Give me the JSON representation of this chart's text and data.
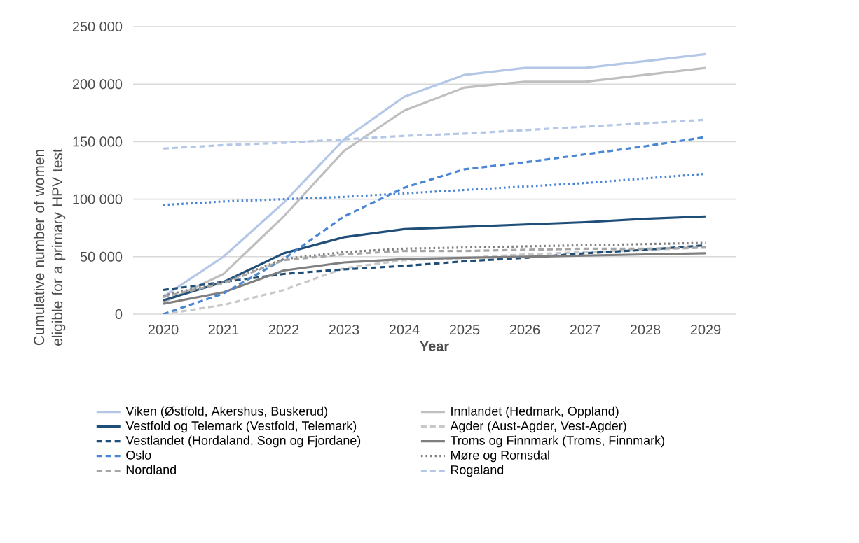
{
  "chart_data": {
    "type": "line",
    "xlabel": "Year",
    "ylabel": "Cumulative number of women eligible for a primary HPV test",
    "categories": [
      "2020",
      "2021",
      "2022",
      "2023",
      "2024",
      "2025",
      "2026",
      "2027",
      "2028",
      "2029"
    ],
    "ylim": [
      0,
      250000
    ],
    "yticks": [
      0,
      {
        "value": 50000,
        "label": "50 000"
      },
      {
        "value": 100000,
        "label": "100 000"
      },
      {
        "value": 150000,
        "label": "150 000"
      },
      {
        "value": 200000,
        "label": "200 000"
      },
      {
        "value": 250000,
        "label": "250 000"
      }
    ],
    "grid": "y",
    "legend": "bottom",
    "marker": "none",
    "series": [
      {
        "name": "Viken (Østfold, Akershus, Buskerud)",
        "color": "#b4c7e7",
        "line_style": "solid",
        "values": [
          15000,
          50000,
          97000,
          152000,
          189000,
          208000,
          214000,
          214000,
          220000,
          226000
        ]
      },
      {
        "name": "Innlandet (Hedmark, Oppland)",
        "color": "#bfbfbf",
        "line_style": "solid",
        "values": [
          10000,
          35000,
          85000,
          142000,
          177000,
          197000,
          202000,
          202000,
          208000,
          214000
        ]
      },
      {
        "name": "Vestfold og Telemark (Vestfold, Telemark)",
        "color": "#1f4e79",
        "line_style": "solid",
        "values": [
          12000,
          28000,
          53000,
          67000,
          74000,
          76000,
          78000,
          80000,
          83000,
          85000
        ]
      },
      {
        "name": "Agder (Aust-Agder, Vest-Agder)",
        "color": "#c8c8c8",
        "line_style": "dashed",
        "values": [
          0,
          8000,
          21000,
          40000,
          47000,
          49000,
          52000,
          54000,
          56000,
          58000
        ]
      },
      {
        "name": "Vestlandet (Hordaland, Sogn og Fjordane)",
        "color": "#1f4e79",
        "line_style": "dashed",
        "values": [
          21000,
          28000,
          35000,
          39000,
          42000,
          46000,
          49000,
          53000,
          56000,
          60000
        ]
      },
      {
        "name": "Troms og Finnmark (Troms, Finnmark)",
        "color": "#7f7f7f",
        "line_style": "solid",
        "values": [
          9000,
          19000,
          38000,
          45000,
          48000,
          49000,
          50000,
          51000,
          52000,
          53000
        ]
      },
      {
        "name": "Oslo",
        "color": "#4a86d4",
        "line_style": "dashed",
        "values": [
          0,
          18000,
          48000,
          85000,
          110000,
          126000,
          132000,
          139000,
          146000,
          154000
        ]
      },
      {
        "name": "Møre og Romsdal",
        "color": "#7f7f7f",
        "line_style": "dotted",
        "values": [
          16000,
          28000,
          48000,
          54000,
          57000,
          58000,
          59000,
          60000,
          61000,
          62000
        ]
      },
      {
        "name": "Nordland",
        "color": "#a6a6a6",
        "line_style": "dashed",
        "values": [
          15000,
          27000,
          47000,
          52000,
          55000,
          55000,
          56000,
          57000,
          57000,
          58000
        ]
      },
      {
        "name": "Rogaland",
        "color": "#b4c7e7",
        "line_style": "dashed",
        "values": [
          144000,
          147000,
          149000,
          152000,
          155000,
          157000,
          160000,
          163000,
          166000,
          169000
        ]
      },
      {
        "color": "#4a86d4",
        "line_style": "dotted",
        "values": [
          95000,
          98000,
          100000,
          102000,
          105000,
          108000,
          111000,
          114000,
          118000,
          122000
        ]
      }
    ]
  }
}
